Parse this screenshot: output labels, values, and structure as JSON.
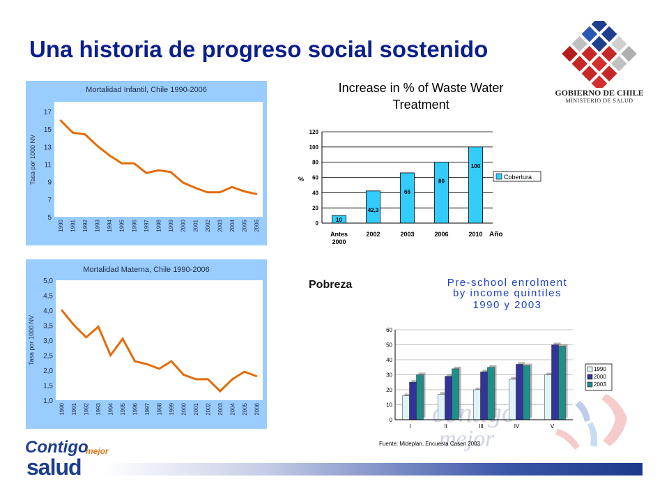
{
  "title": "Una historia de progreso social sostenido",
  "logo_gobierno": {
    "line1": "GOBIERNO DE CHILE",
    "line2": "MINISTERIO DE SALUD"
  },
  "logo_contigo": {
    "line1": "Contigo",
    "line2": "mejor",
    "line3": "salud"
  },
  "side_label": "Pobreza",
  "colors": {
    "title": "#0b1f8c",
    "line": "#e36c0a",
    "panel_bg": "#99ccff",
    "bar_cyan": "#33ccff",
    "q1990": "#dff4f8",
    "q2000": "#333399",
    "q2003": "#1f8f8a"
  },
  "chart_data": [
    {
      "type": "line",
      "title": "Mortalidad Infantil, Chile 1990-2006",
      "ylabel": "Tasa por 1000 NV",
      "xlabel": "",
      "x": [
        "1990",
        "1991",
        "1992",
        "1993",
        "1994",
        "1995",
        "1996",
        "1997",
        "1998",
        "1999",
        "2000",
        "2001",
        "2002",
        "2003",
        "2004",
        "2005",
        "2006"
      ],
      "values": [
        16.0,
        14.6,
        14.4,
        13.1,
        12.0,
        11.1,
        11.1,
        10.0,
        10.3,
        10.1,
        8.9,
        8.3,
        7.8,
        7.8,
        8.4,
        7.9,
        7.6
      ],
      "yticks": [
        "5",
        "7",
        "9",
        "11",
        "13",
        "15",
        "17"
      ],
      "ylim": [
        5,
        17
      ],
      "grid": false
    },
    {
      "type": "line",
      "title": "Mortalidad Materna, Chile 1990-2006",
      "ylabel": "Tasa por 1000 NV",
      "xlabel": "",
      "x": [
        "1990",
        "1991",
        "1992",
        "1993",
        "1994",
        "1995",
        "1996",
        "1997",
        "1998",
        "1999",
        "2000",
        "2001",
        "2002",
        "2003",
        "2004",
        "2005",
        "2006"
      ],
      "values": [
        4.0,
        3.5,
        3.1,
        3.45,
        2.5,
        3.05,
        2.3,
        2.2,
        2.05,
        2.3,
        1.85,
        1.7,
        1.7,
        1.3,
        1.7,
        1.95,
        1.8
      ],
      "yticks": [
        "1,0",
        "1,5",
        "2,0",
        "2,5",
        "3,0",
        "3,5",
        "4,0",
        "4,5",
        "5,0"
      ],
      "ylim": [
        1,
        5
      ],
      "grid": false
    },
    {
      "type": "bar",
      "title": "Increase in % of Waste Water Treatment",
      "title_lines": [
        "Increase in % of Waste Water",
        "Treatment"
      ],
      "ylabel": "%",
      "xlabel": "Año",
      "categories": [
        "Antes 2000",
        "2002",
        "2003",
        "2006",
        "2010"
      ],
      "category_lines": [
        [
          "Antes",
          "2000"
        ],
        [
          "2002"
        ],
        [
          "2003"
        ],
        [
          "2006"
        ],
        [
          "2010"
        ]
      ],
      "values": [
        10,
        42.3,
        66,
        80,
        100
      ],
      "data_labels": [
        "10",
        "42,3",
        "66",
        "80",
        "100"
      ],
      "yticks": [
        "0",
        "20",
        "40",
        "60",
        "80",
        "100",
        "120"
      ],
      "ylim": [
        0,
        120
      ],
      "legend": [
        "Cobertura"
      ],
      "legend_position": "right",
      "grid": true
    },
    {
      "type": "bar",
      "title": "Pre-school enrolment by income quintiles 1990 y 2003",
      "title_lines": [
        "Pre-school enrolment",
        "by income quintiles",
        "1990 y 2003"
      ],
      "categories": [
        "I",
        "II",
        "III",
        "IV",
        "V"
      ],
      "series": [
        {
          "name": "1990",
          "values": [
            16,
            17,
            20,
            27,
            30
          ]
        },
        {
          "name": "2000",
          "values": [
            25,
            29,
            32,
            37,
            50
          ]
        },
        {
          "name": "2003",
          "values": [
            30,
            34,
            35,
            36,
            49
          ]
        }
      ],
      "yticks": [
        "0",
        "10",
        "20",
        "30",
        "40",
        "50",
        "60"
      ],
      "ylim": [
        0,
        60
      ],
      "legend_position": "right",
      "source": "Fuente: Mideplan, Encuesta Casen 2003",
      "grid": true
    }
  ]
}
